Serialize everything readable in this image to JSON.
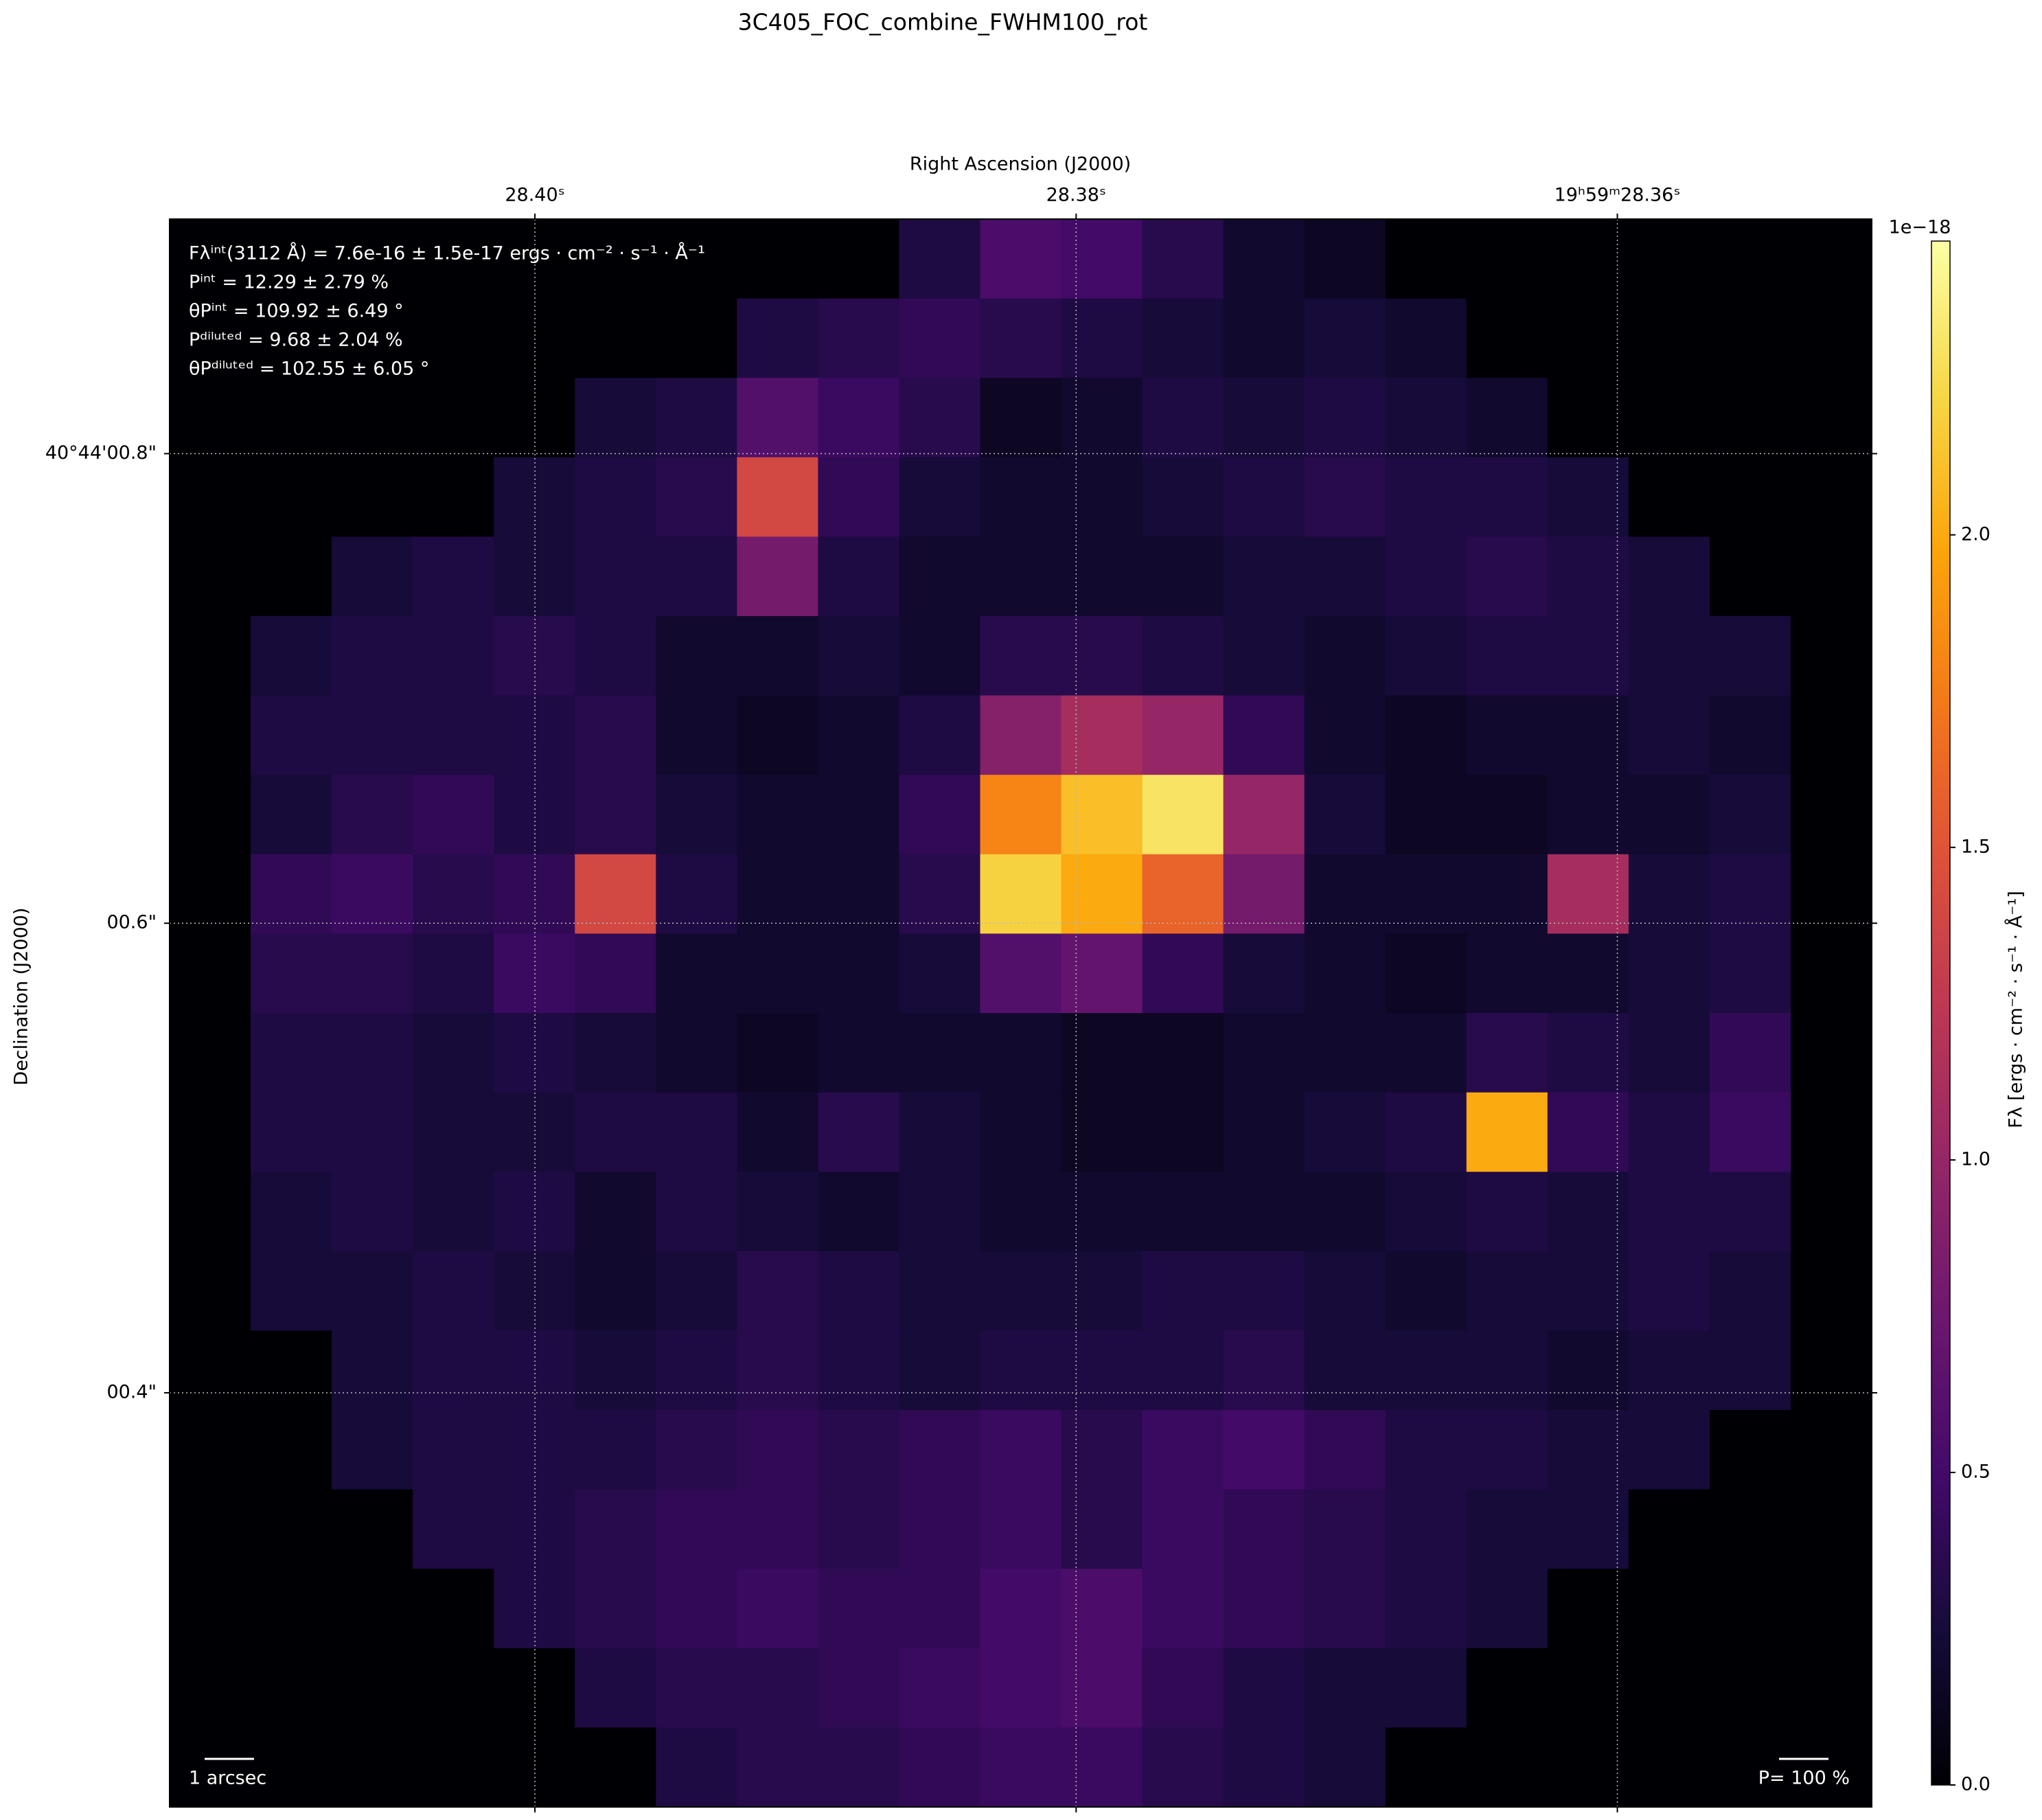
{
  "chart_data": {
    "type": "image",
    "title": "3C405_FOC_combine_FWHM100_rot",
    "xlabel": "Right Ascension (J2000)",
    "ylabel": "Declination (J2000)",
    "xlim": [
      28.4135,
      28.3506
    ],
    "xticks": [
      {
        "value": 28.4,
        "label": "28.40ˢ"
      },
      {
        "value": 28.38,
        "label": "28.38ˢ"
      },
      {
        "value": 28.36,
        "label": "19ʰ59ᵐ28.36ˢ"
      }
    ],
    "ylim": [
      0.2236,
      0.8999
    ],
    "yticks": [
      {
        "value": 0.8,
        "label": "40°44'00.8\""
      },
      {
        "value": 0.6,
        "label": "00.6\""
      },
      {
        "value": 0.4,
        "label": "00.4\""
      }
    ],
    "grid": true,
    "colormap": "inferno",
    "image": {
      "values": [
        [
          0,
          0,
          0,
          0,
          0,
          0,
          0,
          0,
          0,
          0.3,
          0.55,
          0.5,
          0.35,
          0.2,
          0.15,
          0,
          0,
          0,
          0,
          0,
          0
        ],
        [
          0,
          0,
          0,
          0,
          0,
          0,
          0,
          0.3,
          0.35,
          0.4,
          0.35,
          0.3,
          0.25,
          0.2,
          0.25,
          0.2,
          0,
          0,
          0,
          0,
          0
        ],
        [
          0,
          0,
          0,
          0,
          0,
          0.25,
          0.3,
          0.6,
          0.45,
          0.35,
          0.15,
          0.2,
          0.3,
          0.25,
          0.3,
          0.25,
          0.2,
          0,
          0,
          0,
          0
        ],
        [
          0,
          0,
          0,
          0,
          0.25,
          0.3,
          0.35,
          1.4,
          0.4,
          0.25,
          0.2,
          0.2,
          0.25,
          0.3,
          0.35,
          0.3,
          0.3,
          0.25,
          0,
          0,
          0
        ],
        [
          0,
          0,
          0.25,
          0.3,
          0.25,
          0.3,
          0.3,
          0.8,
          0.3,
          0.2,
          0.2,
          0.2,
          0.2,
          0.25,
          0.25,
          0.3,
          0.35,
          0.3,
          0.25,
          0,
          0
        ],
        [
          0,
          0.25,
          0.3,
          0.3,
          0.35,
          0.3,
          0.2,
          0.2,
          0.25,
          0.2,
          0.35,
          0.35,
          0.3,
          0.25,
          0.2,
          0.25,
          0.3,
          0.3,
          0.25,
          0.25,
          0
        ],
        [
          0,
          0.3,
          0.3,
          0.3,
          0.3,
          0.35,
          0.2,
          0.15,
          0.2,
          0.3,
          0.9,
          1.1,
          1.0,
          0.4,
          0.2,
          0.15,
          0.2,
          0.2,
          0.25,
          0.2,
          0
        ],
        [
          0,
          0.25,
          0.35,
          0.4,
          0.3,
          0.35,
          0.25,
          0.2,
          0.2,
          0.4,
          1.8,
          2.1,
          2.3,
          1.0,
          0.25,
          0.15,
          0.15,
          0.2,
          0.2,
          0.25,
          0
        ],
        [
          0,
          0.4,
          0.45,
          0.35,
          0.4,
          1.4,
          0.3,
          0.2,
          0.2,
          0.35,
          2.2,
          2.0,
          1.6,
          0.8,
          0.2,
          0.2,
          0.2,
          1.1,
          0.25,
          0.3,
          0
        ],
        [
          0,
          0.35,
          0.35,
          0.3,
          0.45,
          0.4,
          0.2,
          0.2,
          0.2,
          0.25,
          0.6,
          0.7,
          0.4,
          0.25,
          0.2,
          0.15,
          0.2,
          0.2,
          0.25,
          0.3,
          0
        ],
        [
          0,
          0.3,
          0.3,
          0.25,
          0.3,
          0.25,
          0.2,
          0.15,
          0.2,
          0.2,
          0.2,
          0.15,
          0.15,
          0.2,
          0.2,
          0.2,
          0.35,
          0.3,
          0.25,
          0.4,
          0
        ],
        [
          0,
          0.3,
          0.3,
          0.25,
          0.25,
          0.3,
          0.3,
          0.2,
          0.35,
          0.25,
          0.2,
          0.15,
          0.15,
          0.2,
          0.25,
          0.3,
          2.0,
          0.4,
          0.3,
          0.45,
          0
        ],
        [
          0,
          0.25,
          0.3,
          0.25,
          0.3,
          0.2,
          0.3,
          0.25,
          0.2,
          0.25,
          0.2,
          0.2,
          0.2,
          0.2,
          0.2,
          0.25,
          0.3,
          0.25,
          0.3,
          0.3,
          0
        ],
        [
          0,
          0.25,
          0.25,
          0.3,
          0.25,
          0.2,
          0.25,
          0.35,
          0.3,
          0.25,
          0.25,
          0.25,
          0.3,
          0.3,
          0.25,
          0.2,
          0.25,
          0.25,
          0.3,
          0.25,
          0
        ],
        [
          0,
          0,
          0.25,
          0.3,
          0.3,
          0.25,
          0.3,
          0.35,
          0.3,
          0.25,
          0.3,
          0.3,
          0.3,
          0.35,
          0.25,
          0.25,
          0.25,
          0.2,
          0.25,
          0.25,
          0
        ],
        [
          0,
          0,
          0.25,
          0.3,
          0.3,
          0.3,
          0.35,
          0.4,
          0.35,
          0.4,
          0.45,
          0.35,
          0.45,
          0.5,
          0.4,
          0.3,
          0.3,
          0.25,
          0.25,
          0,
          0
        ],
        [
          0,
          0,
          0,
          0.3,
          0.3,
          0.35,
          0.4,
          0.4,
          0.35,
          0.4,
          0.45,
          0.35,
          0.45,
          0.4,
          0.35,
          0.3,
          0.25,
          0.25,
          0,
          0,
          0
        ],
        [
          0,
          0,
          0,
          0,
          0.3,
          0.35,
          0.4,
          0.45,
          0.4,
          0.4,
          0.5,
          0.55,
          0.45,
          0.4,
          0.35,
          0.3,
          0.25,
          0,
          0,
          0,
          0
        ],
        [
          0,
          0,
          0,
          0,
          0,
          0.3,
          0.35,
          0.35,
          0.4,
          0.45,
          0.5,
          0.55,
          0.4,
          0.3,
          0.25,
          0.25,
          0,
          0,
          0,
          0,
          0
        ],
        [
          0,
          0,
          0,
          0,
          0,
          0,
          0.3,
          0.35,
          0.35,
          0.4,
          0.45,
          0.45,
          0.35,
          0.3,
          0.25,
          0,
          0,
          0,
          0,
          0,
          0
        ]
      ]
    },
    "colorbar": {
      "label": "Fλ [ergs · cm⁻² · s⁻¹ · Å⁻¹]",
      "offset_label": "1e−18",
      "lim": [
        0,
        2.47
      ],
      "ticks": [
        {
          "value": 0,
          "label": "0.0"
        },
        0.5,
        {
          "value": 1,
          "label": "1.0"
        },
        1.5,
        {
          "value": 2,
          "label": "2.0"
        }
      ]
    },
    "annotations": [
      "Fλⁱⁿᵗ(3112 Å) = 7.6e-16 ± 1.5e-17 ergs · cm⁻² · s⁻¹ · Å⁻¹",
      "Pⁱⁿᵗ = 12.29 ± 2.79 %",
      "θPⁱⁿᵗ = 109.92 ± 6.49 °",
      "Pᵈⁱˡᵘᵗᵉᵈ = 9.68 ± 2.04 %",
      "θPᵈⁱˡᵘᵗᵉᵈ = 102.55 ± 6.05 °"
    ],
    "scale_bar_label": "1 arcsec",
    "vector_scale_label": "P= 100 %"
  }
}
